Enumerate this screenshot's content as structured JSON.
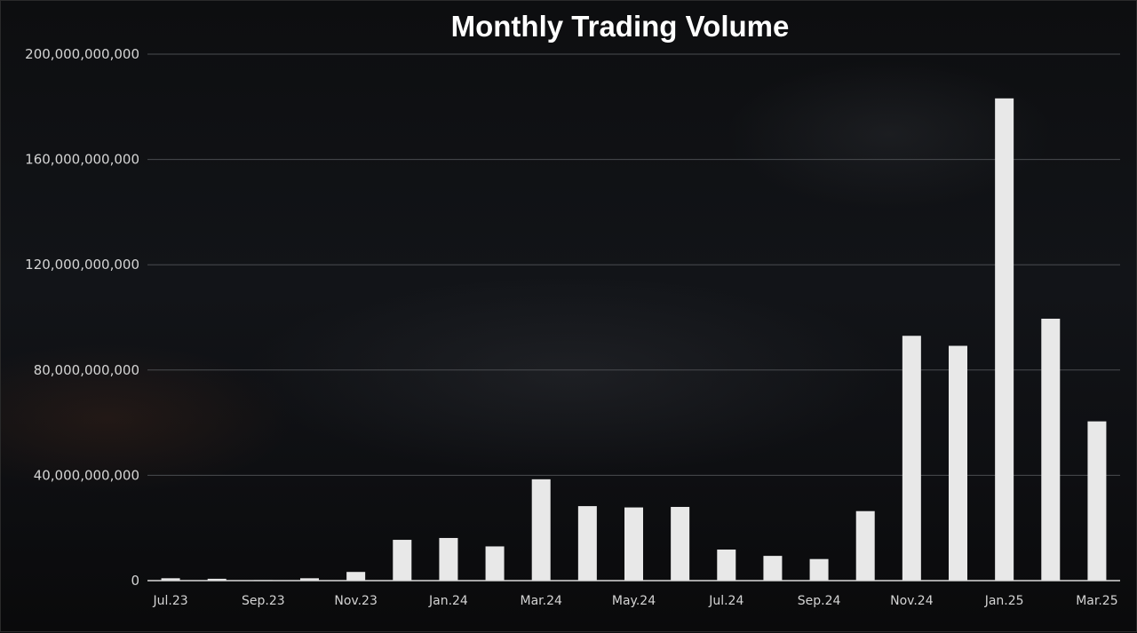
{
  "chart_data": {
    "type": "bar",
    "title": "Monthly Trading Volume",
    "xlabel": "",
    "ylabel": "",
    "ylim": [
      0,
      200000000000
    ],
    "yticks": [
      0,
      40000000000,
      80000000000,
      120000000000,
      160000000000,
      200000000000
    ],
    "ytick_labels": [
      "0",
      "40,000,000,000",
      "80,000,000,000",
      "120,000,000,000",
      "160,000,000,000",
      "200,000,000,000"
    ],
    "categories": [
      "Jul.23",
      "Aug.23",
      "Sep.23",
      "Oct.23",
      "Nov.23",
      "Dec.23",
      "Jan.24",
      "Feb.24",
      "Mar.24",
      "Apr.24",
      "May.24",
      "Jun.24",
      "Jul.24",
      "Aug.24",
      "Sep.24",
      "Oct.24",
      "Nov.24",
      "Dec.24",
      "Jan.25",
      "Feb.25",
      "Mar.25"
    ],
    "x_tick_labels": [
      "Jul.23",
      "",
      "Sep.23",
      "",
      "Nov.23",
      "",
      "Jan.24",
      "",
      "Mar.24",
      "",
      "May.24",
      "",
      "Jul.24",
      "",
      "Sep.24",
      "",
      "Nov.24",
      "",
      "Jan.25",
      "",
      "Mar.25"
    ],
    "values": [
      900000000,
      700000000,
      200000000,
      900000000,
      3300000000,
      15500000000,
      16200000000,
      13000000000,
      38500000000,
      28300000000,
      27800000000,
      28000000000,
      11800000000,
      9400000000,
      8200000000,
      26400000000,
      93000000000,
      89200000000,
      183200000000,
      99500000000,
      60500000000
    ],
    "bar_color": "#e8e8e8",
    "grid": true,
    "legend": "none"
  }
}
